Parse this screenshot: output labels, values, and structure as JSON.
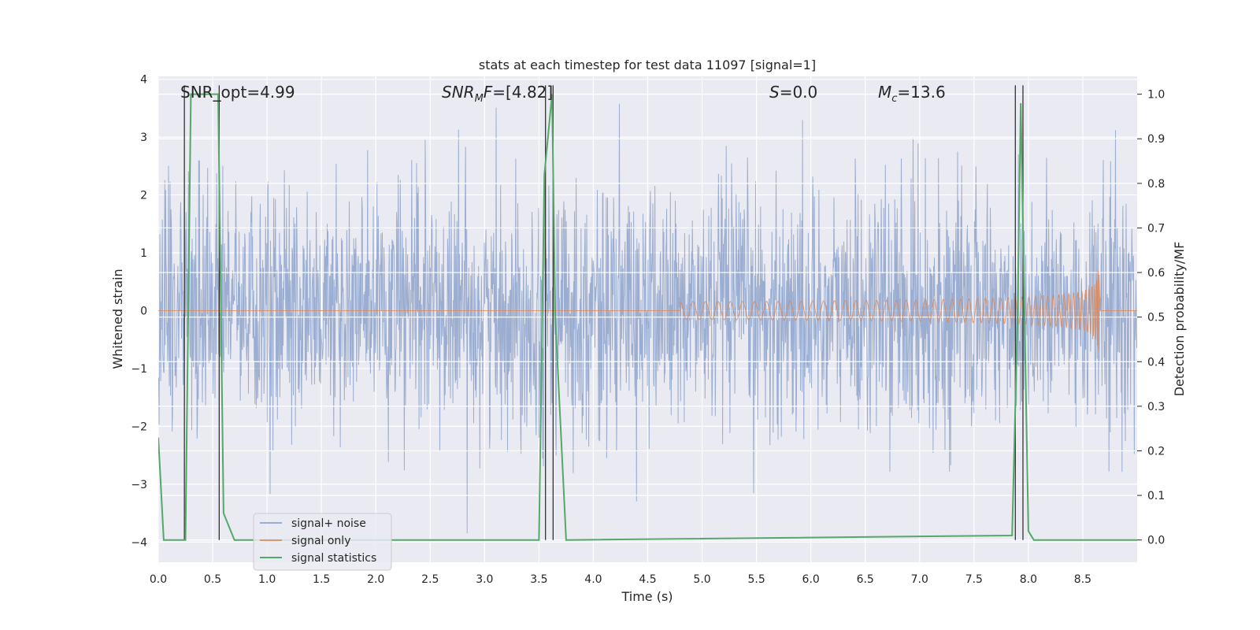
{
  "chart_data": {
    "type": "line",
    "title": "stats at each timestep for test data 11097 [signal=1]",
    "xlabel": "Time (s)",
    "ylabel_left": "Whitened strain",
    "ylabel_right": "Detection probability/MF",
    "xlim": [
      0.0,
      9.0
    ],
    "ylim_left": [
      -4.35,
      4.05
    ],
    "ylim_right": [
      -0.05,
      1.04
    ],
    "x_ticks": [
      "0.0",
      "0.5",
      "1.0",
      "1.5",
      "2.0",
      "2.5",
      "3.0",
      "3.5",
      "4.0",
      "4.5",
      "5.0",
      "5.5",
      "6.0",
      "6.5",
      "7.0",
      "7.5",
      "8.0",
      "8.5"
    ],
    "y_ticks_left": [
      "4",
      "3",
      "2",
      "1",
      "0",
      "−1",
      "−2",
      "−3",
      "−4"
    ],
    "y_ticks_right": [
      "1.0",
      "0.9",
      "0.8",
      "0.7",
      "0.6",
      "0.5",
      "0.4",
      "0.3",
      "0.2",
      "0.1",
      "0.0"
    ],
    "grid": true,
    "legend_position": "lower-left",
    "annotations": [
      {
        "key": "snr_opt",
        "text": "SNR_opt=4.99"
      },
      {
        "key": "snr_mf",
        "text": "SNR_MF=[4.82]"
      },
      {
        "key": "s",
        "text": "S=0.0"
      },
      {
        "key": "mc",
        "text": "M_c=13.6"
      }
    ],
    "series": [
      {
        "name": "signal+ noise",
        "color": "#4c72b0",
        "axis": "left",
        "kind": "noise",
        "std": 1.05
      },
      {
        "name": "signal only",
        "color": "#dd8452",
        "axis": "left",
        "kind": "chirp",
        "start": 4.8,
        "end": 8.65,
        "peak_amplitude": 0.85
      },
      {
        "name": "signal statistics",
        "color": "#55a868",
        "axis": "right",
        "x": [
          0.0,
          0.05,
          0.25,
          0.3,
          0.55,
          0.6,
          0.7,
          3.5,
          3.55,
          3.62,
          3.65,
          3.75,
          7.85,
          7.9,
          7.93,
          8.0,
          8.05,
          9.0
        ],
        "y": [
          0.23,
          0.0,
          0.0,
          1.0,
          1.0,
          0.06,
          0.0,
          0.0,
          0.82,
          1.0,
          0.5,
          0.0,
          0.01,
          0.5,
          0.98,
          0.02,
          0.0,
          0.0
        ]
      }
    ],
    "vertical_lines_x": [
      0.24,
      0.56,
      3.56,
      3.63,
      7.88,
      7.95
    ]
  }
}
